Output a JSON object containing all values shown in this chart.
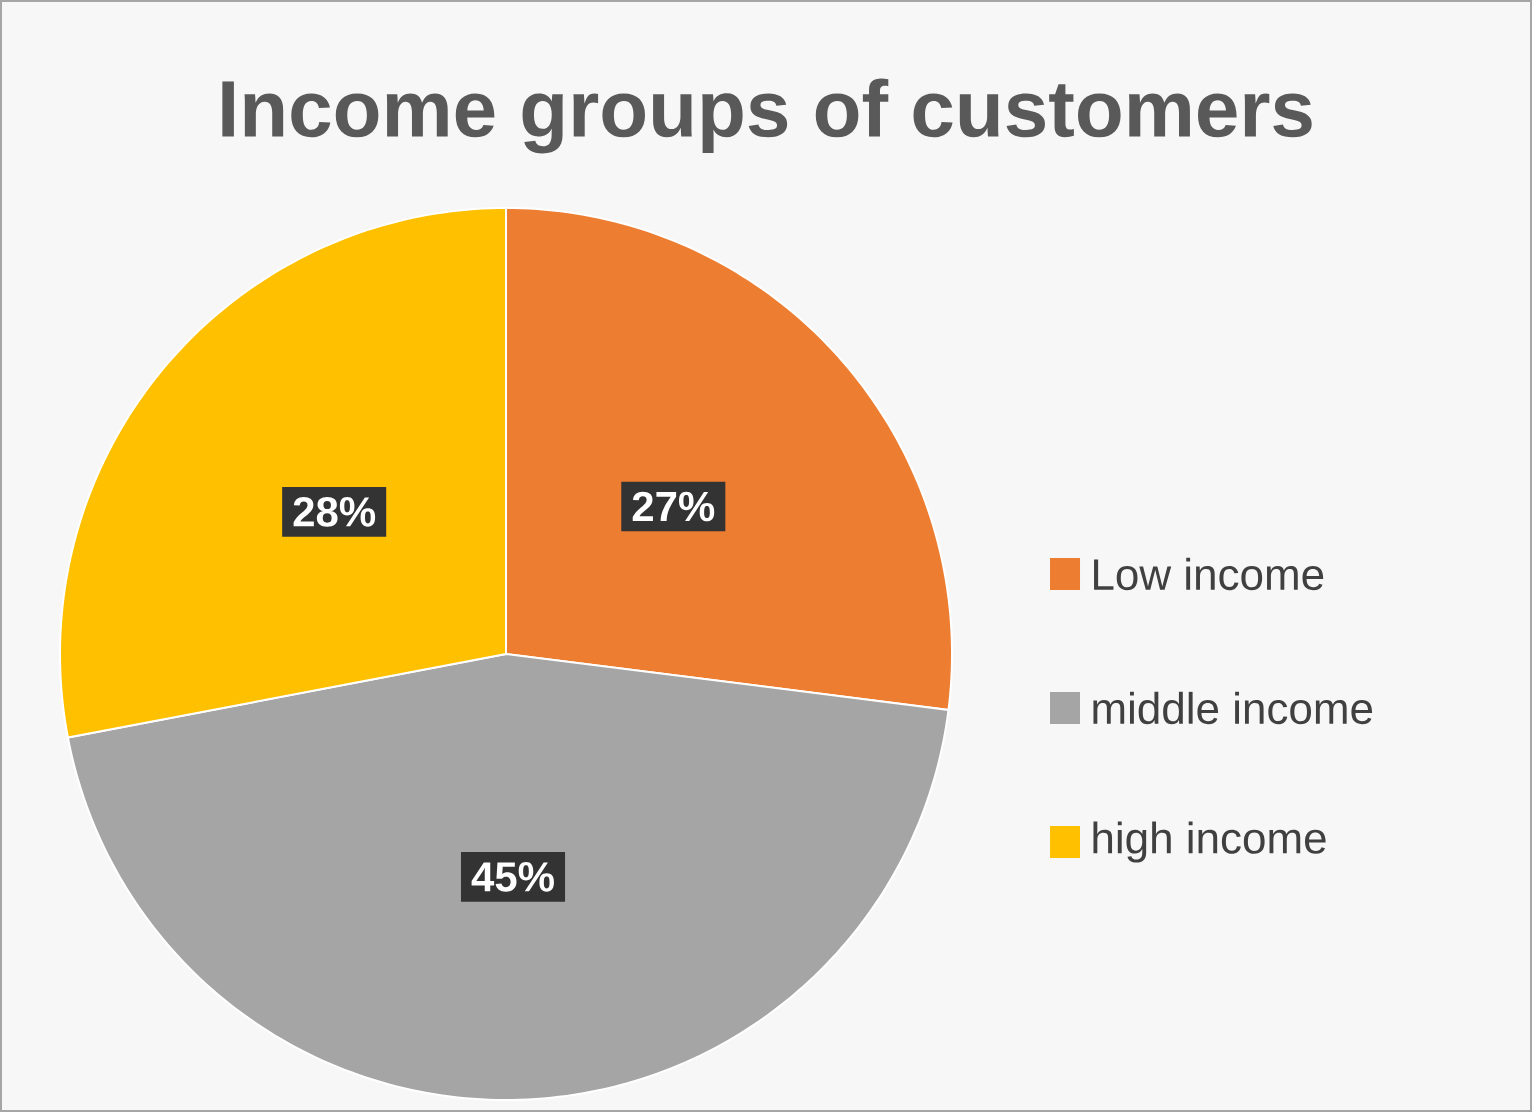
{
  "chart_data": {
    "type": "pie",
    "title": "Income groups of customers",
    "categories": [
      "Low income",
      "middle income",
      "high income"
    ],
    "values": [
      27,
      45,
      28
    ],
    "colors": [
      "#ed7d31",
      "#a5a5a5",
      "#ffc000"
    ],
    "value_labels": [
      "27%",
      "45%",
      "28%"
    ],
    "legend": "right"
  }
}
